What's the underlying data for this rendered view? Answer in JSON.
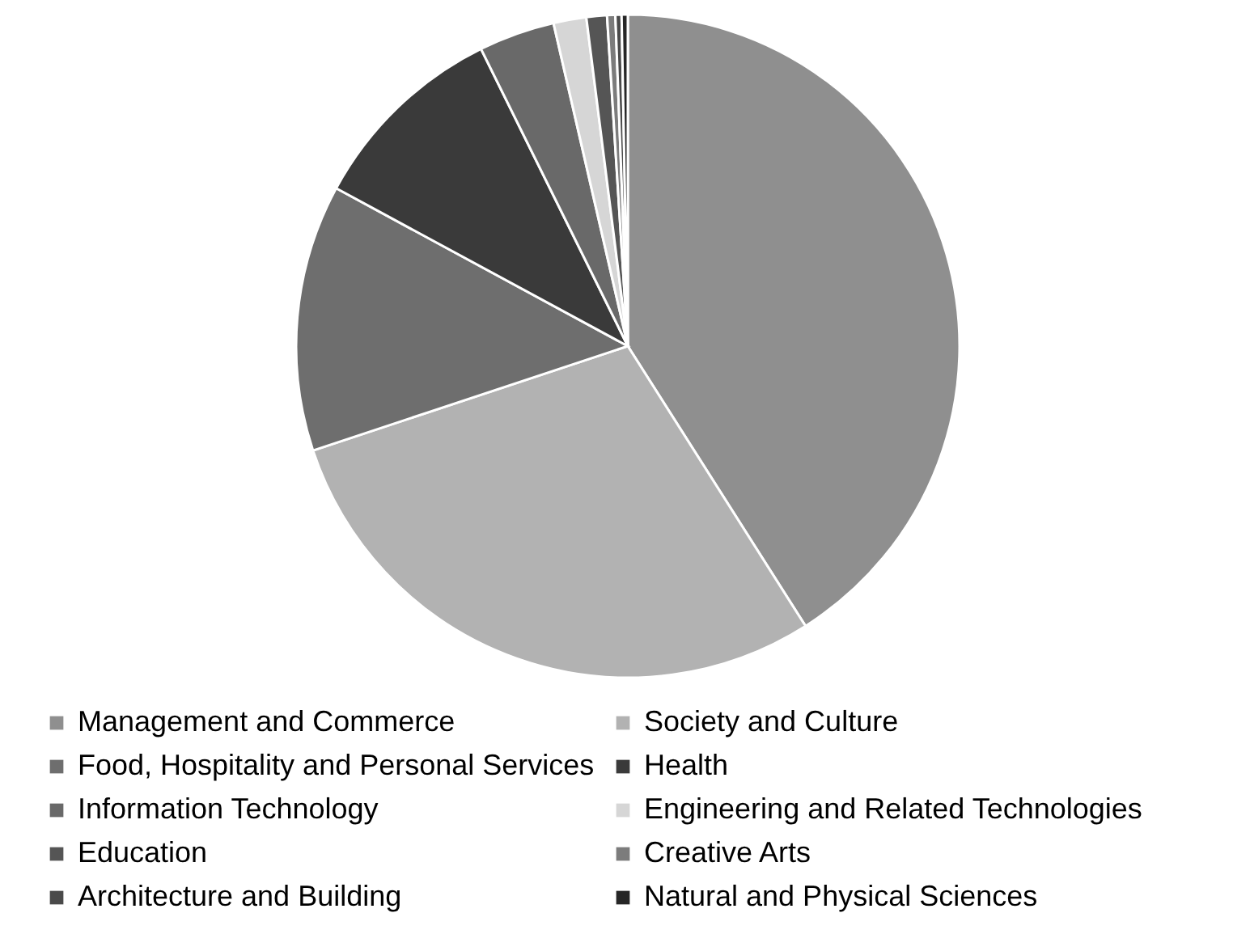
{
  "chart_data": {
    "type": "pie",
    "categories": [
      "Management and Commerce",
      "Society and Culture",
      "Food, Hospitality and Personal Services",
      "Health",
      "Information Technology",
      "Engineering and Related Technologies",
      "Education",
      "Creative Arts",
      "Architecture and Building",
      "Natural and Physical Sciences"
    ],
    "values": [
      41.0,
      28.9,
      13.0,
      9.8,
      3.7,
      1.6,
      1.0,
      0.4,
      0.3,
      0.3
    ],
    "colors": [
      "#8f8f8f",
      "#b2b2b2",
      "#6e6e6e",
      "#3a3a3a",
      "#696969",
      "#d6d6d6",
      "#555555",
      "#7c7c7c",
      "#4a4a4a",
      "#262626"
    ],
    "legend": "bottom"
  }
}
